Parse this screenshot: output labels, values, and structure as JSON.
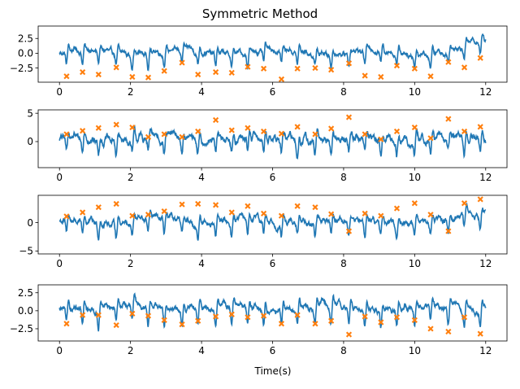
{
  "title": "Symmetric Method",
  "xlabel": "Time(s)",
  "colors": {
    "signal": "#1f77b4",
    "markers": "#ff7f0e"
  },
  "chart_data": [
    {
      "type": "line",
      "xlim": [
        -0.6,
        12.6
      ],
      "ylim": [
        -4.9,
        4.6
      ],
      "xticks": [
        0,
        2,
        4,
        6,
        8,
        10,
        12
      ],
      "yticks": [
        -2.5,
        0.0,
        2.5
      ],
      "ytick_labels": [
        "−2.5",
        "0.0",
        "2.5"
      ],
      "signal_range": [
        0,
        12
      ],
      "series": [
        {
          "kind": "signal",
          "baseline": 0.0,
          "amplitude": 2.2,
          "noise": 0.5,
          "drift_end": 2.0,
          "spike": "down"
        },
        {
          "kind": "markers",
          "x": [
            0.2,
            0.65,
            1.1,
            1.6,
            2.05,
            2.5,
            2.95,
            3.45,
            3.9,
            4.4,
            4.85,
            5.3,
            5.75,
            6.25,
            6.7,
            7.2,
            7.65,
            8.15,
            8.6,
            9.05,
            9.5,
            10.0,
            10.45,
            10.95,
            11.4,
            11.85
          ],
          "y": [
            -3.9,
            -3.2,
            -3.6,
            -2.4,
            -4.0,
            -4.1,
            -3.0,
            -1.6,
            -3.6,
            -3.2,
            -3.3,
            -2.3,
            -2.6,
            -4.4,
            -2.6,
            -2.5,
            -2.8,
            -1.7,
            -3.8,
            -4.0,
            -2.1,
            -2.6,
            -3.9,
            -1.5,
            -2.4,
            -0.8
          ]
        }
      ]
    },
    {
      "type": "line",
      "xlim": [
        -0.6,
        12.6
      ],
      "ylim": [
        -4.6,
        5.6
      ],
      "xticks": [
        0,
        2,
        4,
        6,
        8,
        10,
        12
      ],
      "yticks": [
        0,
        5
      ],
      "ytick_labels": [
        "0",
        "5"
      ],
      "signal_range": [
        0,
        12
      ],
      "series": [
        {
          "kind": "signal",
          "baseline": 0.2,
          "amplitude": 2.6,
          "noise": 0.8,
          "drift_end": 0.0,
          "spike": "down"
        },
        {
          "kind": "markers",
          "x": [
            0.2,
            0.65,
            1.1,
            1.6,
            2.05,
            2.5,
            2.95,
            3.45,
            3.9,
            4.4,
            4.85,
            5.3,
            5.75,
            6.25,
            6.7,
            7.2,
            7.65,
            8.15,
            8.6,
            9.05,
            9.5,
            10.0,
            10.45,
            10.95,
            11.4,
            11.85
          ],
          "y": [
            1.3,
            1.9,
            2.4,
            3.0,
            2.5,
            0.8,
            1.3,
            0.8,
            1.8,
            3.8,
            2.0,
            2.4,
            1.8,
            1.4,
            2.6,
            1.3,
            2.3,
            4.3,
            1.3,
            0.4,
            1.8,
            2.5,
            0.6,
            4.0,
            1.8,
            2.6
          ]
        }
      ]
    },
    {
      "type": "line",
      "xlim": [
        -0.6,
        12.6
      ],
      "ylim": [
        -5.5,
        4.8
      ],
      "xticks": [
        0,
        2,
        4,
        6,
        8,
        10,
        12
      ],
      "yticks": [
        -5,
        0
      ],
      "ytick_labels": [
        "−5",
        "0"
      ],
      "signal_range": [
        0,
        12
      ],
      "series": [
        {
          "kind": "signal",
          "baseline": 0.0,
          "amplitude": 2.5,
          "noise": 0.6,
          "drift_end": 2.0,
          "spike": "down"
        },
        {
          "kind": "markers",
          "x": [
            0.2,
            0.65,
            1.1,
            1.6,
            2.05,
            2.5,
            2.95,
            3.45,
            3.9,
            4.4,
            4.85,
            5.3,
            5.75,
            6.25,
            6.7,
            7.2,
            7.65,
            8.15,
            8.6,
            9.05,
            9.5,
            10.0,
            10.45,
            10.95,
            11.4,
            11.85
          ],
          "y": [
            1.1,
            1.8,
            2.7,
            3.3,
            1.2,
            1.4,
            2.0,
            3.2,
            3.3,
            3.1,
            1.8,
            2.9,
            1.6,
            1.2,
            2.9,
            2.7,
            1.5,
            -1.5,
            1.6,
            1.2,
            2.5,
            3.4,
            1.4,
            -1.5,
            3.4,
            4.1
          ]
        }
      ]
    },
    {
      "type": "line",
      "xlim": [
        -0.6,
        12.6
      ],
      "ylim": [
        -4.2,
        3.6
      ],
      "xticks": [
        0,
        2,
        4,
        6,
        8,
        10,
        12
      ],
      "xtick_labels": [
        "0",
        "2",
        "4",
        "6",
        "8",
        "10",
        "12"
      ],
      "yticks": [
        -2.5,
        0.0,
        2.5
      ],
      "ytick_labels": [
        "−2.5",
        "0.0",
        "2.5"
      ],
      "signal_range": [
        0,
        12
      ],
      "series": [
        {
          "kind": "signal",
          "baseline": 0.2,
          "amplitude": 2.4,
          "noise": 0.45,
          "drift_end": 0.0,
          "spike": "down"
        },
        {
          "kind": "markers",
          "x": [
            0.2,
            0.65,
            1.1,
            1.6,
            2.05,
            2.5,
            2.95,
            3.45,
            3.9,
            4.4,
            4.85,
            5.3,
            5.75,
            6.25,
            6.7,
            7.2,
            7.65,
            8.15,
            8.6,
            9.05,
            9.5,
            10.0,
            10.45,
            10.95,
            11.4,
            11.85
          ],
          "y": [
            -1.8,
            -0.6,
            -0.6,
            -2.0,
            -0.4,
            -0.7,
            -1.3,
            -1.9,
            -1.4,
            -0.8,
            -0.5,
            -0.9,
            -0.7,
            -1.8,
            -0.6,
            -1.8,
            -1.4,
            -3.3,
            -0.8,
            -1.6,
            -0.9,
            -1.3,
            -2.5,
            -2.9,
            -0.9,
            -3.2
          ]
        }
      ]
    }
  ]
}
